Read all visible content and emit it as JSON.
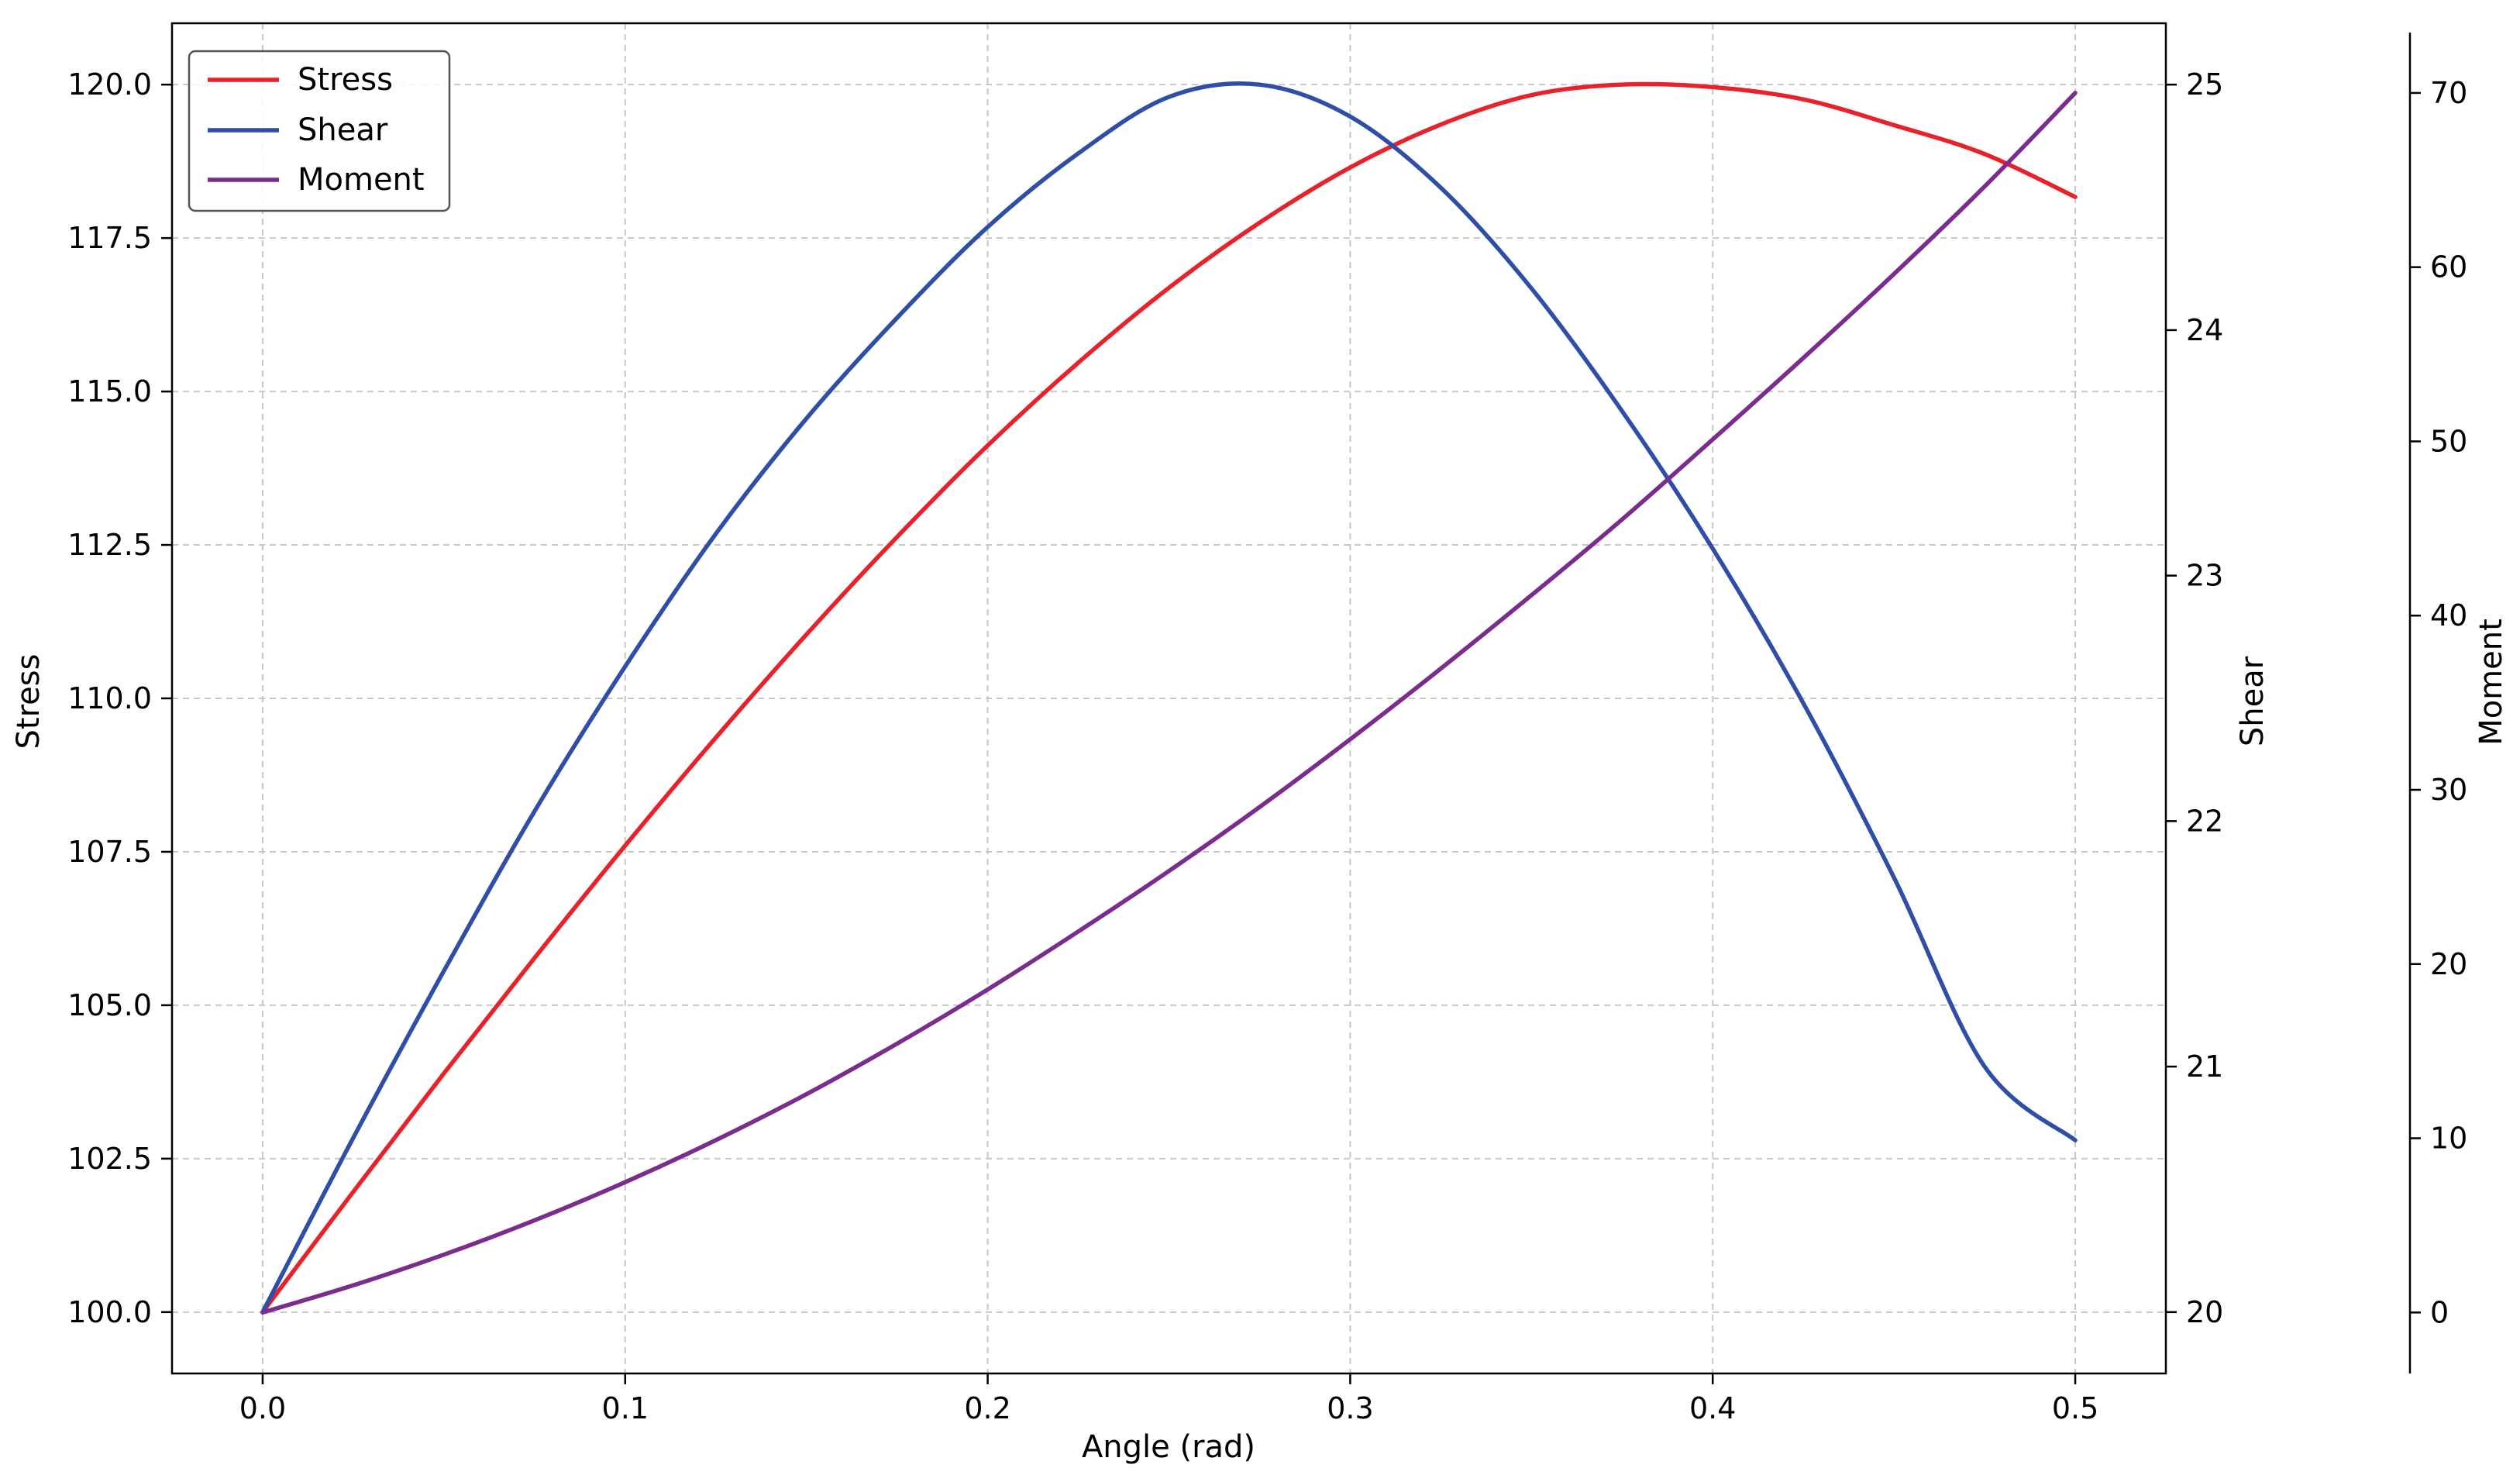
{
  "chart_data": {
    "type": "line",
    "xlabel": "Angle (rad)",
    "xlim": [
      -0.025,
      0.525
    ],
    "x_ticks": [
      0.0,
      0.1,
      0.2,
      0.3,
      0.4,
      0.5
    ],
    "x_tick_labels": [
      "0.0",
      "0.1",
      "0.2",
      "0.3",
      "0.4",
      "0.5"
    ],
    "grid": true,
    "legend_position": "top-left",
    "axes": {
      "left": {
        "label": "Stress",
        "ylim": [
          99.0,
          121.0
        ],
        "ticks": [
          100.0,
          102.5,
          105.0,
          107.5,
          110.0,
          112.5,
          115.0,
          117.5,
          120.0
        ],
        "tick_labels": [
          "100.0",
          "102.5",
          "105.0",
          "107.5",
          "110.0",
          "112.5",
          "115.0",
          "117.5",
          "120.0"
        ]
      },
      "right": {
        "label": "Shear",
        "ylim": [
          19.75,
          25.25
        ],
        "ticks": [
          20,
          21,
          22,
          23,
          24,
          25
        ],
        "tick_labels": [
          "20",
          "21",
          "22",
          "23",
          "24",
          "25"
        ]
      },
      "outer": {
        "label": "Moment",
        "ylim": [
          -3.5,
          74.0
        ],
        "ticks": [
          0,
          10,
          20,
          30,
          40,
          50,
          60,
          70
        ],
        "tick_labels": [
          "0",
          "10",
          "20",
          "30",
          "40",
          "50",
          "60",
          "70"
        ]
      }
    },
    "series": [
      {
        "name": "Stress",
        "axis": "left",
        "color": "#e8222b",
        "x": [
          0.0,
          0.025,
          0.05,
          0.075,
          0.1,
          0.125,
          0.15,
          0.175,
          0.2,
          0.225,
          0.25,
          0.275,
          0.3,
          0.325,
          0.35,
          0.375,
          0.4,
          0.425,
          0.45,
          0.475,
          0.5
        ],
        "y": [
          100.0,
          101.96,
          103.89,
          105.77,
          107.6,
          109.36,
          111.04,
          112.63,
          114.12,
          115.47,
          116.69,
          117.75,
          118.65,
          119.35,
          119.83,
          120.0,
          119.96,
          119.76,
          119.34,
          118.87,
          118.17
        ]
      },
      {
        "name": "Shear",
        "axis": "right",
        "color": "#2f4ea6",
        "x": [
          0.0,
          0.025,
          0.05,
          0.075,
          0.1,
          0.125,
          0.15,
          0.175,
          0.2,
          0.225,
          0.25,
          0.275,
          0.3,
          0.325,
          0.35,
          0.375,
          0.4,
          0.425,
          0.45,
          0.475,
          0.5
        ],
        "y": [
          20.0,
          20.71,
          21.39,
          22.04,
          22.63,
          23.17,
          23.64,
          24.05,
          24.42,
          24.72,
          24.95,
          25.0,
          24.87,
          24.58,
          24.17,
          23.67,
          23.11,
          22.48,
          21.77,
          21.0,
          20.7
        ]
      },
      {
        "name": "Moment",
        "axis": "outer",
        "color": "#7b2d8e",
        "x": [
          0.0,
          0.025,
          0.05,
          0.075,
          0.1,
          0.125,
          0.15,
          0.175,
          0.2,
          0.225,
          0.25,
          0.275,
          0.3,
          0.325,
          0.35,
          0.375,
          0.4,
          0.425,
          0.45,
          0.475,
          0.5
        ],
        "y": [
          0.0,
          1.56,
          3.32,
          5.29,
          7.48,
          9.89,
          12.53,
          15.43,
          18.54,
          21.87,
          25.34,
          29.01,
          32.9,
          36.96,
          41.17,
          45.52,
          50.11,
          54.79,
          59.61,
          64.63,
          70.0
        ]
      }
    ]
  }
}
